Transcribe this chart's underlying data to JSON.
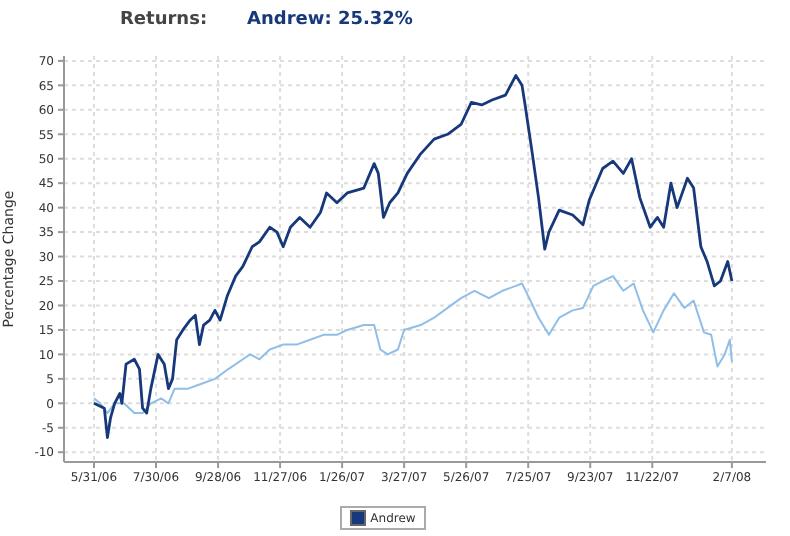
{
  "chart_data": {
    "type": "line",
    "title": "Returns:",
    "subtitle": "Andrew: 25.32%",
    "ylabel": "Percentage Change",
    "xlim": [
      "2006-05-02",
      "2008-03-11"
    ],
    "xticks": [
      {
        "value": "2006-05-31",
        "label": "5/31/06"
      },
      {
        "value": "2006-07-30",
        "label": "7/30/06"
      },
      {
        "value": "2006-09-28",
        "label": "9/28/06"
      },
      {
        "value": "2006-11-27",
        "label": "11/27/06"
      },
      {
        "value": "2007-01-26",
        "label": "1/26/07"
      },
      {
        "value": "2007-03-27",
        "label": "3/27/07"
      },
      {
        "value": "2007-05-26",
        "label": "5/26/07"
      },
      {
        "value": "2007-07-25",
        "label": "7/25/07"
      },
      {
        "value": "2007-09-23",
        "label": "9/23/07"
      },
      {
        "value": "2007-11-22",
        "label": "11/22/07"
      },
      {
        "value": "2008-02-07",
        "label": "2/7/08"
      }
    ],
    "ylim": [
      -12,
      71
    ],
    "yticks": [
      -10,
      -5,
      0,
      5,
      10,
      15,
      20,
      25,
      30,
      35,
      40,
      45,
      50,
      55,
      60,
      65,
      70
    ],
    "grid": true,
    "legend": "bottom",
    "marker": "none",
    "line_style": "solid",
    "series": [
      {
        "color": "#8fbfe8",
        "x": [
          "2006-05-31",
          "2006-06-06",
          "2006-06-13",
          "2006-06-20",
          "2006-06-29",
          "2006-07-09",
          "2006-07-17",
          "2006-07-25",
          "2006-08-04",
          "2006-08-11",
          "2006-08-17",
          "2006-08-30",
          "2006-09-12",
          "2006-09-25",
          "2006-10-08",
          "2006-10-22",
          "2006-10-29",
          "2006-11-07",
          "2006-11-17",
          "2006-11-30",
          "2006-12-13",
          "2006-12-26",
          "2007-01-08",
          "2007-01-21",
          "2007-01-31",
          "2007-02-16",
          "2007-02-26",
          "2007-03-04",
          "2007-03-11",
          "2007-03-21",
          "2007-03-27",
          "2007-04-12",
          "2007-04-25",
          "2007-05-08",
          "2007-05-21",
          "2007-06-03",
          "2007-06-17",
          "2007-06-30",
          "2007-07-13",
          "2007-07-19",
          "2007-07-26",
          "2007-08-04",
          "2007-08-14",
          "2007-08-24",
          "2007-09-06",
          "2007-09-16",
          "2007-09-26",
          "2007-10-05",
          "2007-10-15",
          "2007-10-25",
          "2007-11-04",
          "2007-11-13",
          "2007-11-23",
          "2007-12-03",
          "2007-12-13",
          "2007-12-23",
          "2008-01-01",
          "2008-01-11",
          "2008-01-18",
          "2008-01-24",
          "2008-01-31",
          "2008-02-05",
          "2008-02-07"
        ],
        "values": [
          1,
          0,
          -2,
          0,
          0,
          -2,
          -2,
          0,
          1,
          0,
          3,
          3,
          4,
          5,
          7,
          9,
          10,
          9,
          11,
          12,
          12,
          13,
          14,
          14,
          15,
          16,
          16,
          11,
          10,
          11,
          15,
          16,
          17.5,
          19.5,
          21.5,
          23,
          21.5,
          23,
          24,
          24.5,
          21.5,
          17.5,
          14,
          17.5,
          19,
          19.5,
          24,
          25,
          26,
          23,
          24.5,
          19,
          14.5,
          19,
          22.5,
          19.5,
          21,
          14.5,
          14,
          7.5,
          10,
          13,
          8.5
        ]
      },
      {
        "name": "Andrew",
        "color": "#17387a",
        "x": [
          "2006-05-31",
          "2006-06-10",
          "2006-06-13",
          "2006-06-16",
          "2006-06-20",
          "2006-06-25",
          "2006-06-27",
          "2006-07-01",
          "2006-07-09",
          "2006-07-14",
          "2006-07-17",
          "2006-07-21",
          "2006-07-25",
          "2006-08-01",
          "2006-08-07",
          "2006-08-11",
          "2006-08-15",
          "2006-08-19",
          "2006-08-25",
          "2006-09-01",
          "2006-09-06",
          "2006-09-10",
          "2006-09-14",
          "2006-09-20",
          "2006-09-25",
          "2006-09-30",
          "2006-10-07",
          "2006-10-15",
          "2006-10-22",
          "2006-10-31",
          "2006-11-07",
          "2006-11-17",
          "2006-11-24",
          "2006-11-30",
          "2006-12-07",
          "2006-12-16",
          "2006-12-26",
          "2007-01-05",
          "2007-01-11",
          "2007-01-21",
          "2007-01-31",
          "2007-02-16",
          "2007-02-26",
          "2007-03-02",
          "2007-03-07",
          "2007-03-13",
          "2007-03-21",
          "2007-03-30",
          "2007-04-12",
          "2007-04-25",
          "2007-05-08",
          "2007-05-21",
          "2007-05-31",
          "2007-06-10",
          "2007-06-20",
          "2007-07-03",
          "2007-07-13",
          "2007-07-19",
          "2007-07-22",
          "2007-07-29",
          "2007-08-04",
          "2007-08-10",
          "2007-08-14",
          "2007-08-24",
          "2007-09-06",
          "2007-09-16",
          "2007-09-22",
          "2007-10-05",
          "2007-10-15",
          "2007-10-25",
          "2007-11-02",
          "2007-11-10",
          "2007-11-20",
          "2007-11-27",
          "2007-12-03",
          "2007-12-10",
          "2007-12-16",
          "2007-12-26",
          "2008-01-01",
          "2008-01-08",
          "2008-01-14",
          "2008-01-21",
          "2008-01-27",
          "2008-02-03",
          "2008-02-05",
          "2008-02-07"
        ],
        "values": [
          0,
          -1,
          -7,
          -3,
          0,
          2,
          0,
          8,
          9,
          7,
          -1,
          -2,
          3,
          10,
          8,
          3,
          5,
          13,
          15,
          17,
          18,
          12,
          16,
          17,
          19,
          17,
          22,
          26,
          28,
          32,
          33,
          36,
          35,
          32,
          36,
          38,
          36,
          39,
          43,
          41,
          43,
          44,
          49,
          47,
          38,
          41,
          43,
          47,
          51,
          54,
          55,
          57,
          61.5,
          61,
          62,
          63,
          67,
          65,
          61,
          51,
          42,
          31.5,
          35,
          39.5,
          38.5,
          36.5,
          41.5,
          48,
          49.5,
          47,
          50,
          42,
          36,
          38,
          36,
          45,
          40,
          46,
          44,
          32,
          29,
          24,
          25,
          29,
          27,
          25
        ]
      }
    ]
  }
}
